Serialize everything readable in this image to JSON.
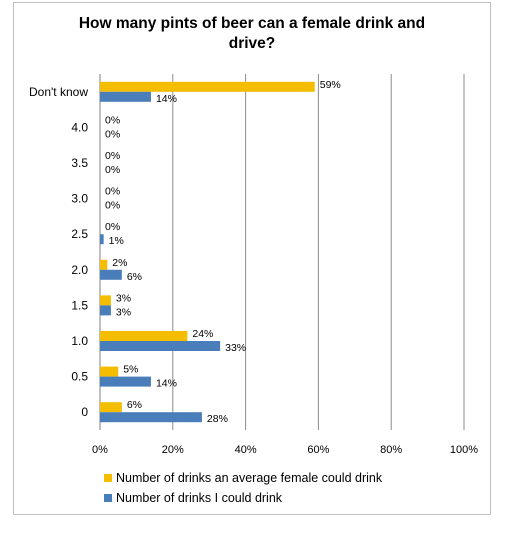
{
  "chart_data": {
    "type": "bar",
    "orientation": "horizontal",
    "title": "How many pints of beer can a female drink and\ndrive?",
    "categories": [
      "Don't know",
      "4.0",
      "3.5",
      "3.0",
      "2.5",
      "2.0",
      "1.5",
      "1.0",
      "0.5",
      "0"
    ],
    "series": [
      {
        "name": "Number of drinks an average female could drink",
        "color": "#f5bd00",
        "values": [
          59,
          0,
          0,
          0,
          0,
          2,
          3,
          24,
          5,
          6
        ],
        "labels": [
          "59%",
          "0%",
          "0%",
          "0%",
          "0%",
          "2%",
          "3%",
          "24%",
          "5%",
          "6%"
        ]
      },
      {
        "name": "Number of drinks I could drink",
        "color": "#4a7ebb",
        "values": [
          14,
          0,
          0,
          0,
          1,
          6,
          3,
          33,
          14,
          28
        ],
        "labels": [
          "14%",
          "0%",
          "0%",
          "0%",
          "1%",
          "6%",
          "3%",
          "33%",
          "14%",
          "28%"
        ]
      }
    ],
    "xlim": [
      0,
      100
    ],
    "xticks": [
      "0%",
      "20%",
      "40%",
      "60%",
      "80%",
      "100%"
    ],
    "grid": "vertical",
    "legend_position": "bottom"
  }
}
